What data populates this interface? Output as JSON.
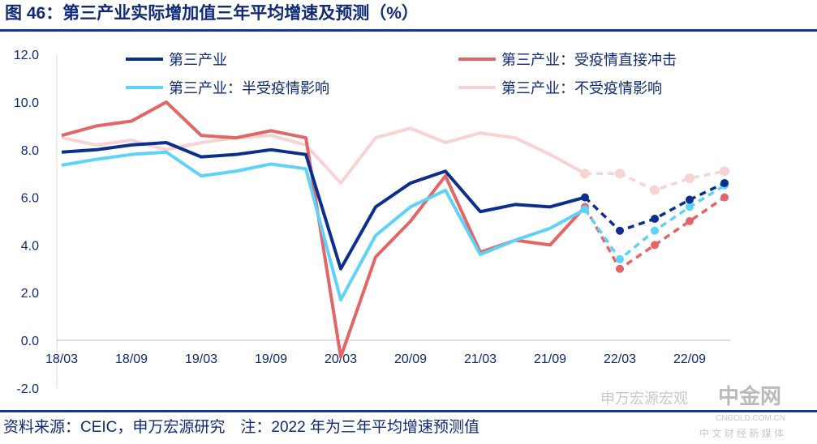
{
  "title": "图 46：第三产业实际增加值三年平均增速及预测（%）",
  "source": "资料来源：CEIC，申万宏源研究　注：2022 年为三年平均增速预测值",
  "watermark": {
    "wechat": "申万宏源宏观",
    "brand": "中金网",
    "domain": "CNGOLD.COM.CN",
    "slogan": "中 文 财 经 新 媒 体"
  },
  "chart_data": {
    "type": "line",
    "title": "第三产业实际增加值三年平均增速及预测（%）",
    "xlabel": "",
    "ylabel": "",
    "ylim": [
      -2,
      12
    ],
    "yticks": [
      "12.0",
      "10.0",
      "8.0",
      "6.0",
      "4.0",
      "2.0",
      "0.0",
      "-2.0"
    ],
    "ytick_values": [
      12,
      10,
      8,
      6,
      4,
      2,
      0,
      -2
    ],
    "x": [
      "18/03",
      "18/06",
      "18/09",
      "18/12",
      "19/03",
      "19/06",
      "19/09",
      "19/12",
      "20/03",
      "20/06",
      "20/09",
      "20/12",
      "21/03",
      "21/06",
      "21/09",
      "21/12",
      "22/03",
      "22/06",
      "22/09",
      "22/12"
    ],
    "xtick_labels": [
      "18/03",
      "18/09",
      "19/03",
      "19/09",
      "20/03",
      "20/09",
      "21/03",
      "21/09",
      "22/03",
      "22/09"
    ],
    "forecast_start_index": 15,
    "legend_position": "top",
    "series": [
      {
        "name": "第三产业",
        "color": "#0a2f8f",
        "values": [
          7.9,
          8.0,
          8.2,
          8.3,
          7.7,
          7.8,
          8.0,
          7.8,
          3.0,
          5.6,
          6.6,
          7.1,
          5.4,
          5.7,
          5.6,
          6.0,
          4.6,
          5.1,
          5.9,
          6.6
        ]
      },
      {
        "name": "第三产业：受疫情直接冲击",
        "color": "#e46565",
        "values": [
          8.6,
          9.0,
          9.2,
          10.0,
          8.6,
          8.5,
          8.8,
          8.5,
          -0.7,
          3.5,
          5.0,
          6.9,
          3.7,
          4.2,
          4.0,
          5.6,
          3.0,
          4.0,
          5.0,
          6.0
        ]
      },
      {
        "name": "第三产业：半受疫情影响",
        "color": "#5dd3fa",
        "values": [
          7.35,
          7.6,
          7.8,
          7.9,
          6.9,
          7.1,
          7.4,
          7.2,
          1.7,
          4.4,
          5.6,
          6.3,
          3.6,
          4.2,
          4.7,
          5.5,
          3.4,
          4.6,
          5.6,
          6.5
        ]
      },
      {
        "name": "第三产业：不受疫情影响",
        "color": "#f8d3d3",
        "values": [
          8.5,
          8.2,
          8.4,
          8.0,
          8.3,
          8.5,
          8.6,
          8.2,
          6.6,
          8.5,
          8.9,
          8.3,
          8.7,
          8.5,
          7.8,
          7.0,
          7.0,
          6.3,
          6.8,
          7.1
        ]
      }
    ]
  }
}
